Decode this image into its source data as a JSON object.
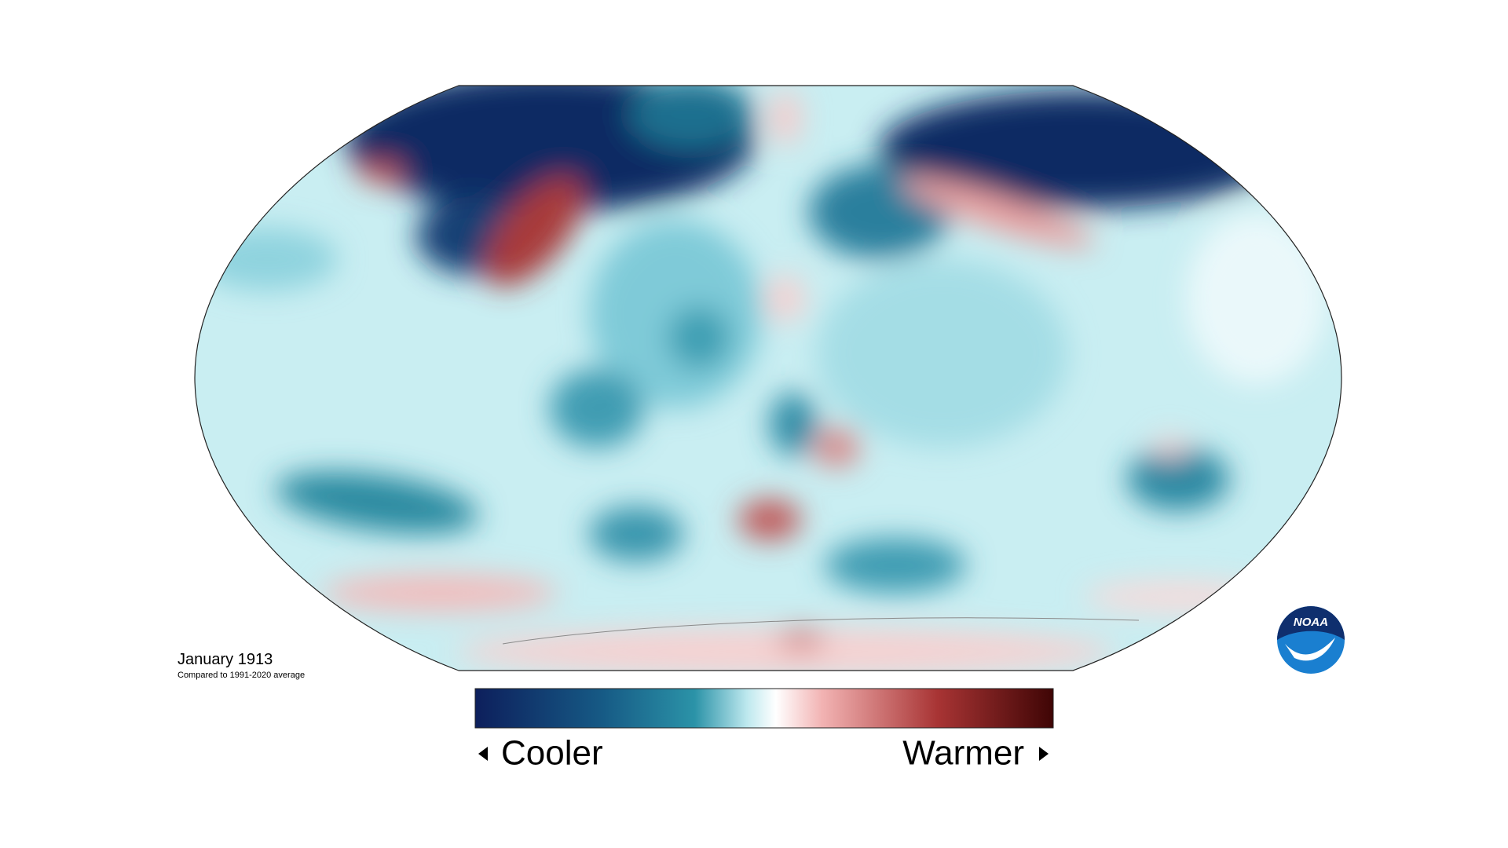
{
  "title": "January 1913",
  "subtitle": "Compared to 1991-2020 average",
  "legend": {
    "low_label": "Cooler",
    "high_label": "Warmer"
  },
  "logo": {
    "label": "NOAA"
  }
}
